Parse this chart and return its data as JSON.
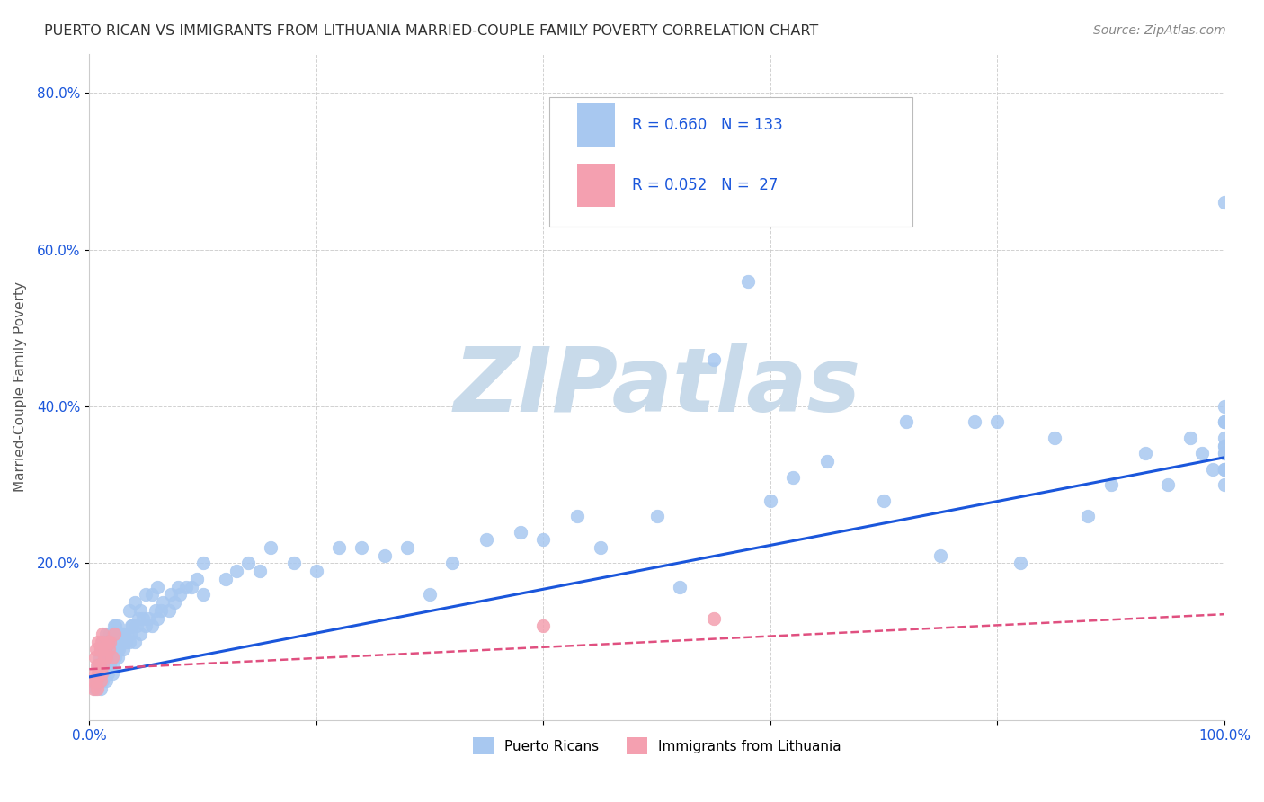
{
  "title": "PUERTO RICAN VS IMMIGRANTS FROM LITHUANIA MARRIED-COUPLE FAMILY POVERTY CORRELATION CHART",
  "source": "Source: ZipAtlas.com",
  "ylabel": "Married-Couple Family Poverty",
  "xlim": [
    0,
    1.0
  ],
  "ylim": [
    0,
    0.85
  ],
  "y_ticks": [
    0.2,
    0.4,
    0.6,
    0.8
  ],
  "y_tick_labels": [
    "20.0%",
    "40.0%",
    "60.0%",
    "80.0%"
  ],
  "x_ticks": [
    0.0,
    0.2,
    0.4,
    0.6,
    0.8,
    1.0
  ],
  "x_tick_labels": [
    "0.0%",
    "",
    "",
    "",
    "",
    "100.0%"
  ],
  "blue_R": 0.66,
  "blue_N": 133,
  "pink_R": 0.052,
  "pink_N": 27,
  "blue_color": "#a8c8f0",
  "pink_color": "#f4a0b0",
  "blue_line_color": "#1a56db",
  "pink_line_color": "#e05080",
  "title_color": "#333333",
  "source_color": "#888888",
  "watermark_color": "#c8daea",
  "grid_color": "#cccccc",
  "legend_text_color": "#1a56db",
  "blue_x": [
    0.005,
    0.006,
    0.007,
    0.008,
    0.008,
    0.009,
    0.009,
    0.01,
    0.01,
    0.01,
    0.011,
    0.011,
    0.012,
    0.012,
    0.012,
    0.013,
    0.013,
    0.014,
    0.014,
    0.015,
    0.015,
    0.015,
    0.016,
    0.016,
    0.017,
    0.017,
    0.018,
    0.018,
    0.019,
    0.02,
    0.02,
    0.021,
    0.021,
    0.022,
    0.022,
    0.023,
    0.023,
    0.024,
    0.025,
    0.025,
    0.026,
    0.027,
    0.028,
    0.029,
    0.03,
    0.031,
    0.032,
    0.033,
    0.035,
    0.035,
    0.036,
    0.037,
    0.038,
    0.04,
    0.04,
    0.042,
    0.043,
    0.045,
    0.045,
    0.047,
    0.05,
    0.05,
    0.052,
    0.055,
    0.055,
    0.058,
    0.06,
    0.06,
    0.063,
    0.065,
    0.07,
    0.072,
    0.075,
    0.078,
    0.08,
    0.085,
    0.09,
    0.095,
    0.1,
    0.1,
    0.12,
    0.13,
    0.14,
    0.15,
    0.16,
    0.18,
    0.2,
    0.22,
    0.24,
    0.26,
    0.28,
    0.3,
    0.32,
    0.35,
    0.38,
    0.4,
    0.43,
    0.45,
    0.5,
    0.52,
    0.55,
    0.58,
    0.6,
    0.62,
    0.65,
    0.7,
    0.72,
    0.75,
    0.78,
    0.8,
    0.82,
    0.85,
    0.88,
    0.9,
    0.93,
    0.95,
    0.97,
    0.98,
    0.99,
    1.0,
    1.0,
    1.0,
    1.0,
    1.0,
    1.0,
    1.0,
    1.0,
    1.0,
    1.0,
    1.0,
    1.0,
    1.0,
    1.0
  ],
  "blue_y": [
    0.04,
    0.05,
    0.05,
    0.06,
    0.07,
    0.06,
    0.08,
    0.04,
    0.07,
    0.09,
    0.06,
    0.09,
    0.05,
    0.07,
    0.1,
    0.06,
    0.08,
    0.07,
    0.1,
    0.05,
    0.08,
    0.11,
    0.06,
    0.09,
    0.07,
    0.1,
    0.07,
    0.11,
    0.08,
    0.06,
    0.09,
    0.07,
    0.11,
    0.08,
    0.12,
    0.08,
    0.12,
    0.09,
    0.08,
    0.12,
    0.09,
    0.1,
    0.1,
    0.11,
    0.09,
    0.11,
    0.1,
    0.11,
    0.1,
    0.14,
    0.11,
    0.12,
    0.12,
    0.1,
    0.15,
    0.12,
    0.13,
    0.11,
    0.14,
    0.13,
    0.12,
    0.16,
    0.13,
    0.12,
    0.16,
    0.14,
    0.13,
    0.17,
    0.14,
    0.15,
    0.14,
    0.16,
    0.15,
    0.17,
    0.16,
    0.17,
    0.17,
    0.18,
    0.16,
    0.2,
    0.18,
    0.19,
    0.2,
    0.19,
    0.22,
    0.2,
    0.19,
    0.22,
    0.22,
    0.21,
    0.22,
    0.16,
    0.2,
    0.23,
    0.24,
    0.23,
    0.26,
    0.22,
    0.26,
    0.17,
    0.46,
    0.56,
    0.28,
    0.31,
    0.33,
    0.28,
    0.38,
    0.21,
    0.38,
    0.38,
    0.2,
    0.36,
    0.26,
    0.3,
    0.34,
    0.3,
    0.36,
    0.34,
    0.32,
    0.36,
    0.32,
    0.34,
    0.32,
    0.38,
    0.3,
    0.4,
    0.35,
    0.38,
    0.66,
    0.35,
    0.34,
    0.32,
    0.38
  ],
  "pink_x": [
    0.003,
    0.004,
    0.005,
    0.005,
    0.006,
    0.006,
    0.007,
    0.007,
    0.008,
    0.008,
    0.009,
    0.01,
    0.01,
    0.011,
    0.011,
    0.012,
    0.012,
    0.013,
    0.014,
    0.015,
    0.016,
    0.017,
    0.018,
    0.02,
    0.022,
    0.4,
    0.55
  ],
  "pink_y": [
    0.05,
    0.04,
    0.06,
    0.08,
    0.05,
    0.09,
    0.04,
    0.07,
    0.06,
    0.1,
    0.07,
    0.05,
    0.09,
    0.06,
    0.1,
    0.07,
    0.11,
    0.08,
    0.09,
    0.08,
    0.1,
    0.09,
    0.1,
    0.08,
    0.11,
    0.12,
    0.13
  ],
  "blue_line_y_start": 0.055,
  "blue_line_y_end": 0.335,
  "pink_line_y_start": 0.065,
  "pink_line_y_end": 0.135
}
